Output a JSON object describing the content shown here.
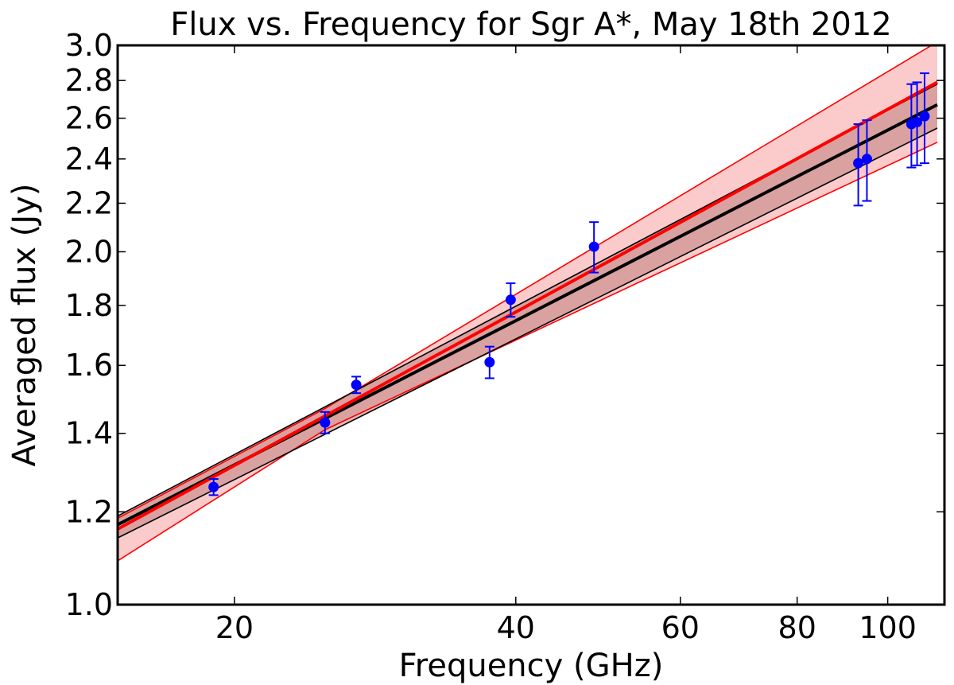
{
  "chart_data": {
    "type": "scatter",
    "title": "Flux vs. Frequency for Sgr A*, May 18th 2012",
    "xlabel": "Frequency (GHz)",
    "ylabel": "Averaged flux (Jy)",
    "x_scale": "log",
    "y_scale": "log",
    "xlim": [
      15,
      115
    ],
    "ylim": [
      1.0,
      3.0
    ],
    "x_ticks": [
      20,
      40,
      60,
      80,
      100
    ],
    "x_tick_labels": [
      "20",
      "40",
      "60",
      "80",
      "100"
    ],
    "y_ticks": [
      1.0,
      1.2,
      1.4,
      1.6,
      1.8,
      2.0,
      2.2,
      2.4,
      2.6,
      2.8,
      3.0
    ],
    "y_tick_labels": [
      "1.0",
      "1.2",
      "1.4",
      "1.6",
      "1.8",
      "2.0",
      "2.2",
      "2.4",
      "2.6",
      "2.8",
      "3.0"
    ],
    "grid": false,
    "measurements": {
      "color": "#0000ff",
      "points": [
        {
          "x": 19.0,
          "y": 1.26,
          "err": 0.02
        },
        {
          "x": 25.0,
          "y": 1.43,
          "err": 0.03
        },
        {
          "x": 27.0,
          "y": 1.54,
          "err": 0.025
        },
        {
          "x": 37.5,
          "y": 1.61,
          "err": 0.05
        },
        {
          "x": 39.5,
          "y": 1.82,
          "err": 0.06
        },
        {
          "x": 48.5,
          "y": 2.02,
          "err": 0.1
        },
        {
          "x": 93.0,
          "y": 2.38,
          "err": 0.19
        },
        {
          "x": 95.0,
          "y": 2.4,
          "err": 0.19
        },
        {
          "x": 106.0,
          "y": 2.57,
          "err": 0.21
        },
        {
          "x": 107.5,
          "y": 2.58,
          "err": 0.21
        },
        {
          "x": 109.5,
          "y": 2.61,
          "err": 0.23
        }
      ]
    },
    "fits": [
      {
        "color": "#ff0000",
        "fill": "#f8a0a0",
        "line": [
          [
            15,
            1.16
          ],
          [
            113,
            2.79
          ]
        ],
        "band_upper": [
          [
            15,
            1.185
          ],
          [
            25,
            1.47
          ],
          [
            113,
            3.02
          ]
        ],
        "band_lower": [
          [
            15,
            1.09
          ],
          [
            25,
            1.41
          ],
          [
            113,
            2.48
          ]
        ]
      },
      {
        "color": "#000000",
        "fill": "#c08080",
        "line": [
          [
            15,
            1.17
          ],
          [
            113,
            2.67
          ]
        ],
        "band_upper": [
          [
            15,
            1.19
          ],
          [
            113,
            2.78
          ]
        ],
        "band_lower": [
          [
            15,
            1.14
          ],
          [
            113,
            2.55
          ]
        ]
      }
    ]
  }
}
